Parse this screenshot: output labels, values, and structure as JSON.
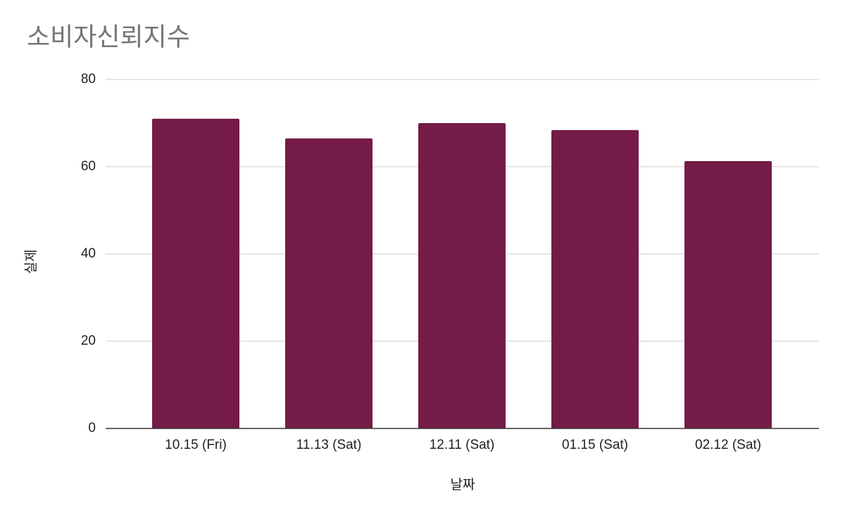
{
  "chart_data": {
    "type": "bar",
    "title": "소비자신뢰지수",
    "x_label": "날짜",
    "y_label": "실제",
    "categories": [
      "10.15 (Fri)",
      "11.13 (Sat)",
      "12.11 (Sat)",
      "01.15 (Sat)",
      "02.12 (Sat)"
    ],
    "values": [
      71,
      66.5,
      70,
      68.4,
      61.3
    ],
    "color": "#741b47",
    "ylim": [
      0,
      80
    ],
    "yticks": [
      0,
      20,
      40,
      60,
      80
    ],
    "grid": true
  }
}
